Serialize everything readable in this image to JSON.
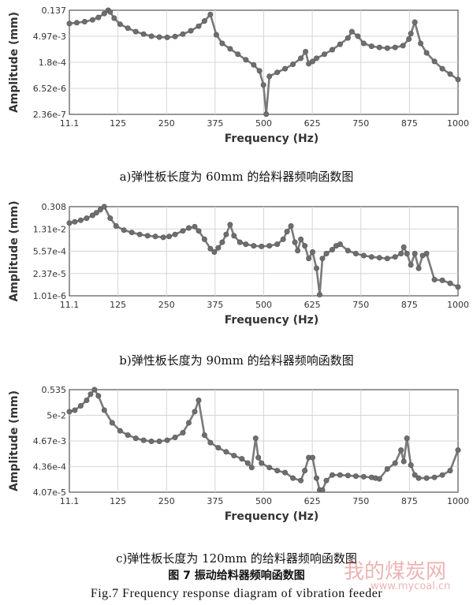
{
  "chart_data": [
    {
      "type": "line",
      "xlabel": "Frequency (Hz)",
      "ylabel": "Amplitude (mm)",
      "x_ticks": [
        "11.1",
        "125",
        "250",
        "375",
        "500",
        "625",
        "750",
        "875",
        "1000"
      ],
      "y_ticks": [
        "0.137",
        "4.97e-3",
        "1.8e-4",
        "6.52e-6",
        "2.36e-7"
      ],
      "log_y": true,
      "xlim": [
        11.1,
        1000
      ],
      "ylim": [
        2.36e-07,
        0.137
      ],
      "grid": true,
      "caption": "a)弹性板长度为 60mm 的给料器频响函数图",
      "series": [
        {
          "x": [
            11.1,
            30,
            50,
            70,
            85,
            100,
            110,
            115,
            125,
            140,
            160,
            180,
            200,
            220,
            240,
            260,
            280,
            300,
            320,
            340,
            355,
            370,
            385,
            400,
            420,
            440,
            460,
            480,
            495,
            505,
            512,
            520,
            540,
            560,
            580,
            600,
            612,
            620,
            630,
            640,
            660,
            680,
            700,
            720,
            730,
            745,
            760,
            780,
            800,
            820,
            840,
            860,
            875,
            880,
            890,
            905,
            920,
            940,
            960,
            980,
            1000
          ],
          "y": [
            0.025,
            0.028,
            0.032,
            0.04,
            0.055,
            0.09,
            0.137,
            0.11,
            0.05,
            0.023,
            0.014,
            0.009,
            0.0065,
            0.005,
            0.0045,
            0.0043,
            0.0048,
            0.0065,
            0.01,
            0.018,
            0.035,
            0.08,
            0.006,
            0.002,
            0.001,
            0.0005,
            0.00025,
            0.00013,
            6e-05,
            1e-05,
            2.4e-07,
            3e-05,
            5e-05,
            8e-05,
            0.00014,
            0.0003,
            0.0007,
            0.00015,
            0.0002,
            0.0003,
            0.0005,
            0.0009,
            0.0018,
            0.004,
            0.009,
            0.005,
            0.002,
            0.0014,
            0.0012,
            0.0011,
            0.0012,
            0.0015,
            0.0035,
            0.007,
            0.03,
            0.002,
            0.0006,
            0.0002,
            8e-05,
            4e-05,
            2e-05
          ]
        }
      ]
    },
    {
      "type": "line",
      "xlabel": "Frequency (Hz)",
      "ylabel": "Amplitude (mm)",
      "x_ticks": [
        "11.1",
        "125",
        "250",
        "375",
        "500",
        "625",
        "750",
        "875",
        "1000"
      ],
      "y_ticks": [
        "0.308",
        "1.31e-2",
        "5.57e-4",
        "2.37e-5",
        "1.01e-6"
      ],
      "log_y": true,
      "xlim": [
        11.1,
        1000
      ],
      "ylim": [
        1.01e-06,
        0.308
      ],
      "grid": true,
      "caption": "b)弹性板长度为 90mm 的给料器频响函数图",
      "series": [
        {
          "x": [
            11.1,
            25,
            40,
            55,
            70,
            80,
            90,
            100,
            115,
            130,
            150,
            170,
            190,
            210,
            230,
            250,
            265,
            280,
            300,
            315,
            330,
            340,
            355,
            370,
            380,
            390,
            400,
            410,
            420,
            430,
            445,
            460,
            480,
            500,
            520,
            540,
            555,
            565,
            575,
            585,
            592,
            600,
            610,
            620,
            630,
            640,
            648,
            655,
            665,
            680,
            690,
            700,
            720,
            740,
            760,
            780,
            800,
            820,
            840,
            855,
            862,
            870,
            880,
            890,
            900,
            910,
            920,
            940,
            960,
            980,
            1000
          ],
          "y": [
            0.03,
            0.036,
            0.045,
            0.06,
            0.09,
            0.13,
            0.2,
            0.308,
            0.06,
            0.02,
            0.011,
            0.008,
            0.006,
            0.005,
            0.0045,
            0.004,
            0.0045,
            0.006,
            0.01,
            0.015,
            0.018,
            0.01,
            0.003,
            0.0008,
            0.0005,
            0.0009,
            0.002,
            0.006,
            0.024,
            0.005,
            0.002,
            0.0015,
            0.0012,
            0.0011,
            0.0012,
            0.0015,
            0.003,
            0.009,
            0.02,
            0.002,
            0.0006,
            0.003,
            0.0012,
            0.0002,
            0.0005,
            5e-05,
            1.2e-06,
            0.0002,
            0.0004,
            0.0007,
            0.0012,
            0.0015,
            0.0006,
            0.0004,
            0.0003,
            0.00025,
            0.00022,
            0.0002,
            0.00025,
            0.0004,
            0.001,
            0.0004,
            8e-05,
            0.0004,
            5e-05,
            0.0003,
            0.0004,
            1e-05,
            9e-06,
            6e-06,
            3.5e-06
          ]
        }
      ]
    },
    {
      "type": "line",
      "xlabel": "Frequency (Hz)",
      "ylabel": "Amplitude (mm)",
      "x_ticks": [
        "11.1",
        "125",
        "250",
        "375",
        "500",
        "625",
        "750",
        "875",
        "1000"
      ],
      "y_ticks": [
        "0.535",
        "5e-2",
        "4.67e-3",
        "4.36e-4",
        "4.07e-5"
      ],
      "log_y": true,
      "xlim": [
        11.1,
        1000
      ],
      "ylim": [
        4.07e-05,
        0.535
      ],
      "grid": true,
      "caption": "c)弹性板长度为 120mm 的给料器频响函数图",
      "series": [
        {
          "x": [
            11.1,
            25,
            40,
            55,
            65,
            75,
            85,
            100,
            120,
            140,
            160,
            180,
            200,
            220,
            240,
            260,
            280,
            300,
            315,
            330,
            340,
            355,
            370,
            390,
            410,
            430,
            450,
            465,
            475,
            485,
            492,
            500,
            520,
            540,
            560,
            580,
            600,
            610,
            620,
            630,
            640,
            648,
            655,
            665,
            680,
            700,
            720,
            740,
            760,
            780,
            790,
            800,
            820,
            840,
            855,
            862,
            870,
            880,
            890,
            900,
            920,
            940,
            960,
            980,
            1000
          ],
          "y": [
            0.07,
            0.08,
            0.12,
            0.2,
            0.35,
            0.535,
            0.3,
            0.08,
            0.025,
            0.012,
            0.008,
            0.006,
            0.005,
            0.0045,
            0.0045,
            0.005,
            0.0065,
            0.01,
            0.025,
            0.07,
            0.2,
            0.008,
            0.004,
            0.0025,
            0.0017,
            0.0012,
            0.0009,
            0.0006,
            0.0004,
            0.006,
            0.001,
            0.0006,
            0.0004,
            0.0003,
            0.00025,
            0.00015,
            0.00012,
            0.0003,
            0.001,
            0.001,
            0.00015,
            5e-05,
            5e-05,
            0.00012,
            0.0002,
            0.0002,
            0.00019,
            0.00018,
            0.00017,
            0.00016,
            0.00015,
            0.00014,
            0.00035,
            0.0006,
            0.002,
            0.0007,
            0.006,
            0.0005,
            0.0002,
            0.00015,
            0.00015,
            0.00016,
            0.0002,
            0.0003,
            0.002
          ]
        }
      ]
    }
  ],
  "figure_caption_cn": "图 7 振动给料器频响函数图",
  "figure_caption_en": "Fig.7  Frequency response diagram of vibration feeder",
  "watermark": {
    "text_cn": "我的煤炭网",
    "text_url": "www.mycoal.cn"
  },
  "colors": {
    "line": "#7a7a7a",
    "marker": "#6e6e6e",
    "grid": "#d5d5d5",
    "frame": "#555555",
    "watermark": "#c83a3a"
  }
}
